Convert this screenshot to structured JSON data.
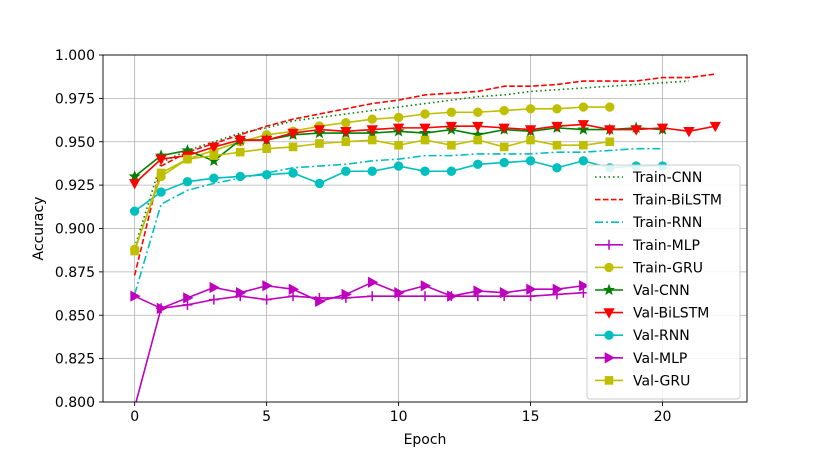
{
  "chart_data": {
    "type": "line",
    "title": "",
    "xlabel": "Epoch",
    "ylabel": "Accuracy",
    "xlim": [
      -1.2,
      23.2
    ],
    "ylim": [
      0.8,
      1.0
    ],
    "xticks": [
      0,
      5,
      10,
      15,
      20
    ],
    "yticks": [
      0.8,
      0.825,
      0.85,
      0.875,
      0.9,
      0.925,
      0.95,
      0.975,
      1.0
    ],
    "ytick_labels": [
      "0.800",
      "0.825",
      "0.850",
      "0.875",
      "0.900",
      "0.925",
      "0.950",
      "0.975",
      "1.000"
    ],
    "grid": true,
    "legend_position": "center-right",
    "series": [
      {
        "name": "Train-CNN",
        "color": "#008000",
        "dash": "dotted",
        "marker": "none",
        "x": [
          0,
          1,
          2,
          3,
          4,
          5,
          6,
          7,
          8,
          9,
          10,
          11,
          12,
          13,
          14,
          15,
          16,
          17,
          18,
          19,
          20,
          21
        ],
        "values": [
          0.889,
          0.938,
          0.945,
          0.95,
          0.955,
          0.958,
          0.962,
          0.964,
          0.966,
          0.968,
          0.97,
          0.972,
          0.974,
          0.976,
          0.977,
          0.979,
          0.98,
          0.981,
          0.982,
          0.983,
          0.984,
          0.985
        ]
      },
      {
        "name": "Train-BiLSTM",
        "color": "#ff0000",
        "dash": "dashed",
        "marker": "none",
        "x": [
          0,
          1,
          2,
          3,
          4,
          5,
          6,
          7,
          8,
          9,
          10,
          11,
          12,
          13,
          14,
          15,
          16,
          17,
          18,
          19,
          20,
          21,
          22
        ],
        "values": [
          0.873,
          0.936,
          0.944,
          0.949,
          0.954,
          0.959,
          0.963,
          0.966,
          0.969,
          0.972,
          0.974,
          0.977,
          0.978,
          0.979,
          0.982,
          0.982,
          0.983,
          0.985,
          0.985,
          0.985,
          0.987,
          0.987,
          0.989
        ]
      },
      {
        "name": "Train-RNN",
        "color": "#00bfbf",
        "dash": "dashdot",
        "marker": "none",
        "x": [
          0,
          1,
          2,
          3,
          4,
          5,
          6,
          7,
          8,
          9,
          10,
          11,
          12,
          13,
          14,
          15,
          16,
          17,
          18,
          19,
          20
        ],
        "values": [
          0.862,
          0.914,
          0.922,
          0.926,
          0.929,
          0.932,
          0.935,
          0.936,
          0.937,
          0.939,
          0.94,
          0.942,
          0.942,
          0.943,
          0.943,
          0.943,
          0.944,
          0.944,
          0.945,
          0.946,
          0.946
        ]
      },
      {
        "name": "Train-MLP",
        "color": "#bf00bf",
        "dash": "solid",
        "marker": "plus",
        "x": [
          0,
          1,
          2,
          3,
          4,
          5,
          6,
          7,
          8,
          9,
          10,
          11,
          12,
          13,
          14,
          15,
          16,
          17
        ],
        "values": [
          0.797,
          0.854,
          0.856,
          0.859,
          0.861,
          0.859,
          0.861,
          0.86,
          0.86,
          0.861,
          0.861,
          0.861,
          0.861,
          0.861,
          0.861,
          0.861,
          0.862,
          0.863
        ]
      },
      {
        "name": "Train-GRU",
        "color": "#bfbf00",
        "dash": "solid",
        "marker": "circle",
        "x": [
          0,
          1,
          2,
          3,
          4,
          5,
          6,
          7,
          8,
          9,
          10,
          11,
          12,
          13,
          14,
          15,
          16,
          17,
          18
        ],
        "values": [
          0.888,
          0.93,
          0.94,
          0.945,
          0.95,
          0.954,
          0.956,
          0.959,
          0.961,
          0.963,
          0.964,
          0.966,
          0.967,
          0.967,
          0.968,
          0.969,
          0.969,
          0.97,
          0.97
        ]
      },
      {
        "name": "Val-CNN",
        "color": "#008000",
        "dash": "solid",
        "marker": "star",
        "x": [
          0,
          1,
          2,
          3,
          4,
          5,
          6,
          7,
          8,
          9,
          10,
          11,
          12,
          13,
          14,
          15,
          16,
          17,
          18,
          19,
          20
        ],
        "values": [
          0.93,
          0.942,
          0.945,
          0.939,
          0.951,
          0.951,
          0.954,
          0.955,
          0.955,
          0.955,
          0.956,
          0.955,
          0.957,
          0.954,
          0.957,
          0.956,
          0.958,
          0.957,
          0.957,
          0.958,
          0.957
        ]
      },
      {
        "name": "Val-BiLSTM",
        "color": "#ff0000",
        "dash": "solid",
        "marker": "triangle-down",
        "x": [
          0,
          1,
          2,
          3,
          4,
          5,
          6,
          7,
          8,
          9,
          10,
          11,
          12,
          13,
          14,
          15,
          16,
          17,
          18,
          19,
          20,
          21,
          22
        ],
        "values": [
          0.926,
          0.94,
          0.942,
          0.947,
          0.951,
          0.951,
          0.955,
          0.957,
          0.956,
          0.957,
          0.958,
          0.958,
          0.959,
          0.959,
          0.958,
          0.957,
          0.959,
          0.96,
          0.957,
          0.957,
          0.958,
          0.956,
          0.959
        ]
      },
      {
        "name": "Val-RNN",
        "color": "#00bfbf",
        "dash": "solid",
        "marker": "circle",
        "x": [
          0,
          1,
          2,
          3,
          4,
          5,
          6,
          7,
          8,
          9,
          10,
          11,
          12,
          13,
          14,
          15,
          16,
          17,
          18,
          19,
          20
        ],
        "values": [
          0.91,
          0.921,
          0.927,
          0.929,
          0.93,
          0.931,
          0.932,
          0.926,
          0.933,
          0.933,
          0.936,
          0.933,
          0.933,
          0.937,
          0.938,
          0.939,
          0.935,
          0.939,
          0.935,
          0.936,
          0.936
        ]
      },
      {
        "name": "Val-MLP",
        "color": "#bf00bf",
        "dash": "solid",
        "marker": "triangle-right",
        "x": [
          0,
          1,
          2,
          3,
          4,
          5,
          6,
          7,
          8,
          9,
          10,
          11,
          12,
          13,
          14,
          15,
          16,
          17
        ],
        "values": [
          0.861,
          0.854,
          0.86,
          0.866,
          0.863,
          0.867,
          0.865,
          0.858,
          0.862,
          0.869,
          0.863,
          0.867,
          0.861,
          0.864,
          0.863,
          0.865,
          0.865,
          0.867
        ]
      },
      {
        "name": "Val-GRU",
        "color": "#bfbf00",
        "dash": "solid",
        "marker": "square",
        "x": [
          0,
          1,
          2,
          3,
          4,
          5,
          6,
          7,
          8,
          9,
          10,
          11,
          12,
          13,
          14,
          15,
          16,
          17,
          18
        ],
        "values": [
          0.887,
          0.932,
          0.94,
          0.942,
          0.944,
          0.946,
          0.947,
          0.949,
          0.95,
          0.951,
          0.948,
          0.951,
          0.948,
          0.951,
          0.947,
          0.951,
          0.948,
          0.948,
          0.95
        ]
      }
    ]
  }
}
